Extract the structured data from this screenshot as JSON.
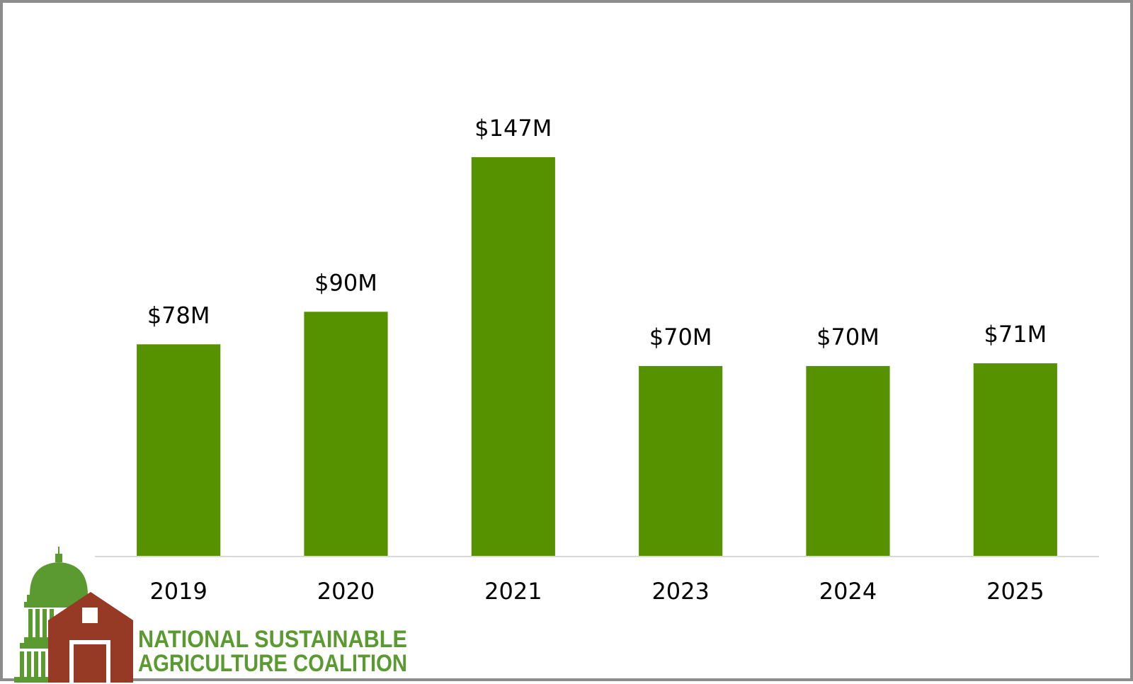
{
  "chart_data": {
    "type": "bar",
    "categories": [
      "2019",
      "2020",
      "2021",
      "2023",
      "2024",
      "2025"
    ],
    "values": [
      78,
      90,
      147,
      70,
      70,
      71
    ],
    "data_labels": [
      "$78M",
      "$90M",
      "$147M",
      "$70M",
      "$70M",
      "$71M"
    ],
    "title": "",
    "xlabel": "",
    "ylabel": "",
    "ylim": [
      0,
      147
    ],
    "grid": false,
    "legend": "none",
    "bar_color": "#569100"
  },
  "logo": {
    "line1": "NATIONAL SUSTAINABLE",
    "line2": "AGRICULTURE COALITION",
    "text_color": "#5a9a30",
    "barn_color": "#963a26",
    "dome_color": "#5a9a30"
  }
}
